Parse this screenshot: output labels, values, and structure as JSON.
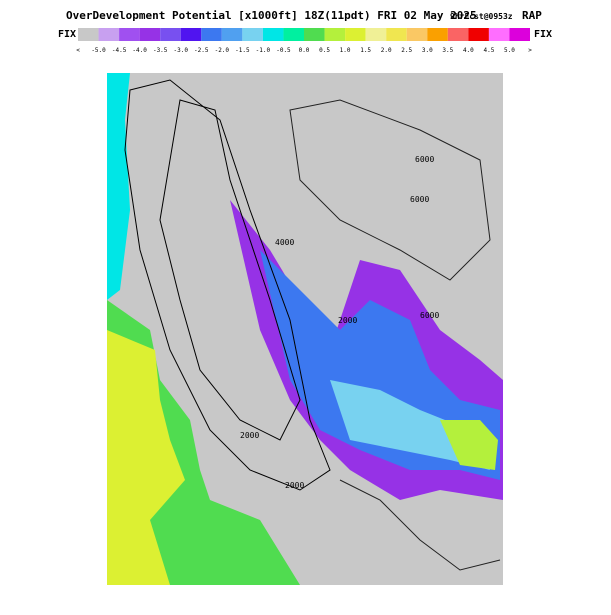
{
  "header": {
    "title": "OverDevelopment Potential [x1000ft] 18Z(11pdt) FRI 02 May 2025",
    "subtitle": "9hrFcst@0953z",
    "source": "RAP"
  },
  "colorbar": {
    "left_label": "FIX",
    "right_label": "FIX",
    "labels": [
      "<",
      "-5.0",
      "-4.5",
      "-4.0",
      "-3.5",
      "-3.0",
      "-2.5",
      "-2.0",
      "-1.5",
      "-1.0",
      "-0.5",
      "0.0",
      "0.5",
      "1.0",
      "1.5",
      "2.0",
      "2.5",
      "3.0",
      "3.5",
      "4.0",
      "4.5",
      "5.0",
      ">"
    ],
    "colors": [
      "#c8c8c8",
      "#c8a0f0",
      "#a050f0",
      "#9632e6",
      "#7850f0",
      "#5014f0",
      "#3c78f0",
      "#50a0f0",
      "#78d2f0",
      "#00e6e6",
      "#00f0a0",
      "#50dc50",
      "#b4f03c",
      "#dcf032",
      "#f0f096",
      "#f0e650",
      "#fac864",
      "#faa000",
      "#fa6464",
      "#f00000",
      "#ff6eff",
      "#dc00dc"
    ]
  },
  "contours": [
    "6000",
    "6000",
    "6000",
    "4000",
    "2000",
    "2000",
    "2000"
  ]
}
